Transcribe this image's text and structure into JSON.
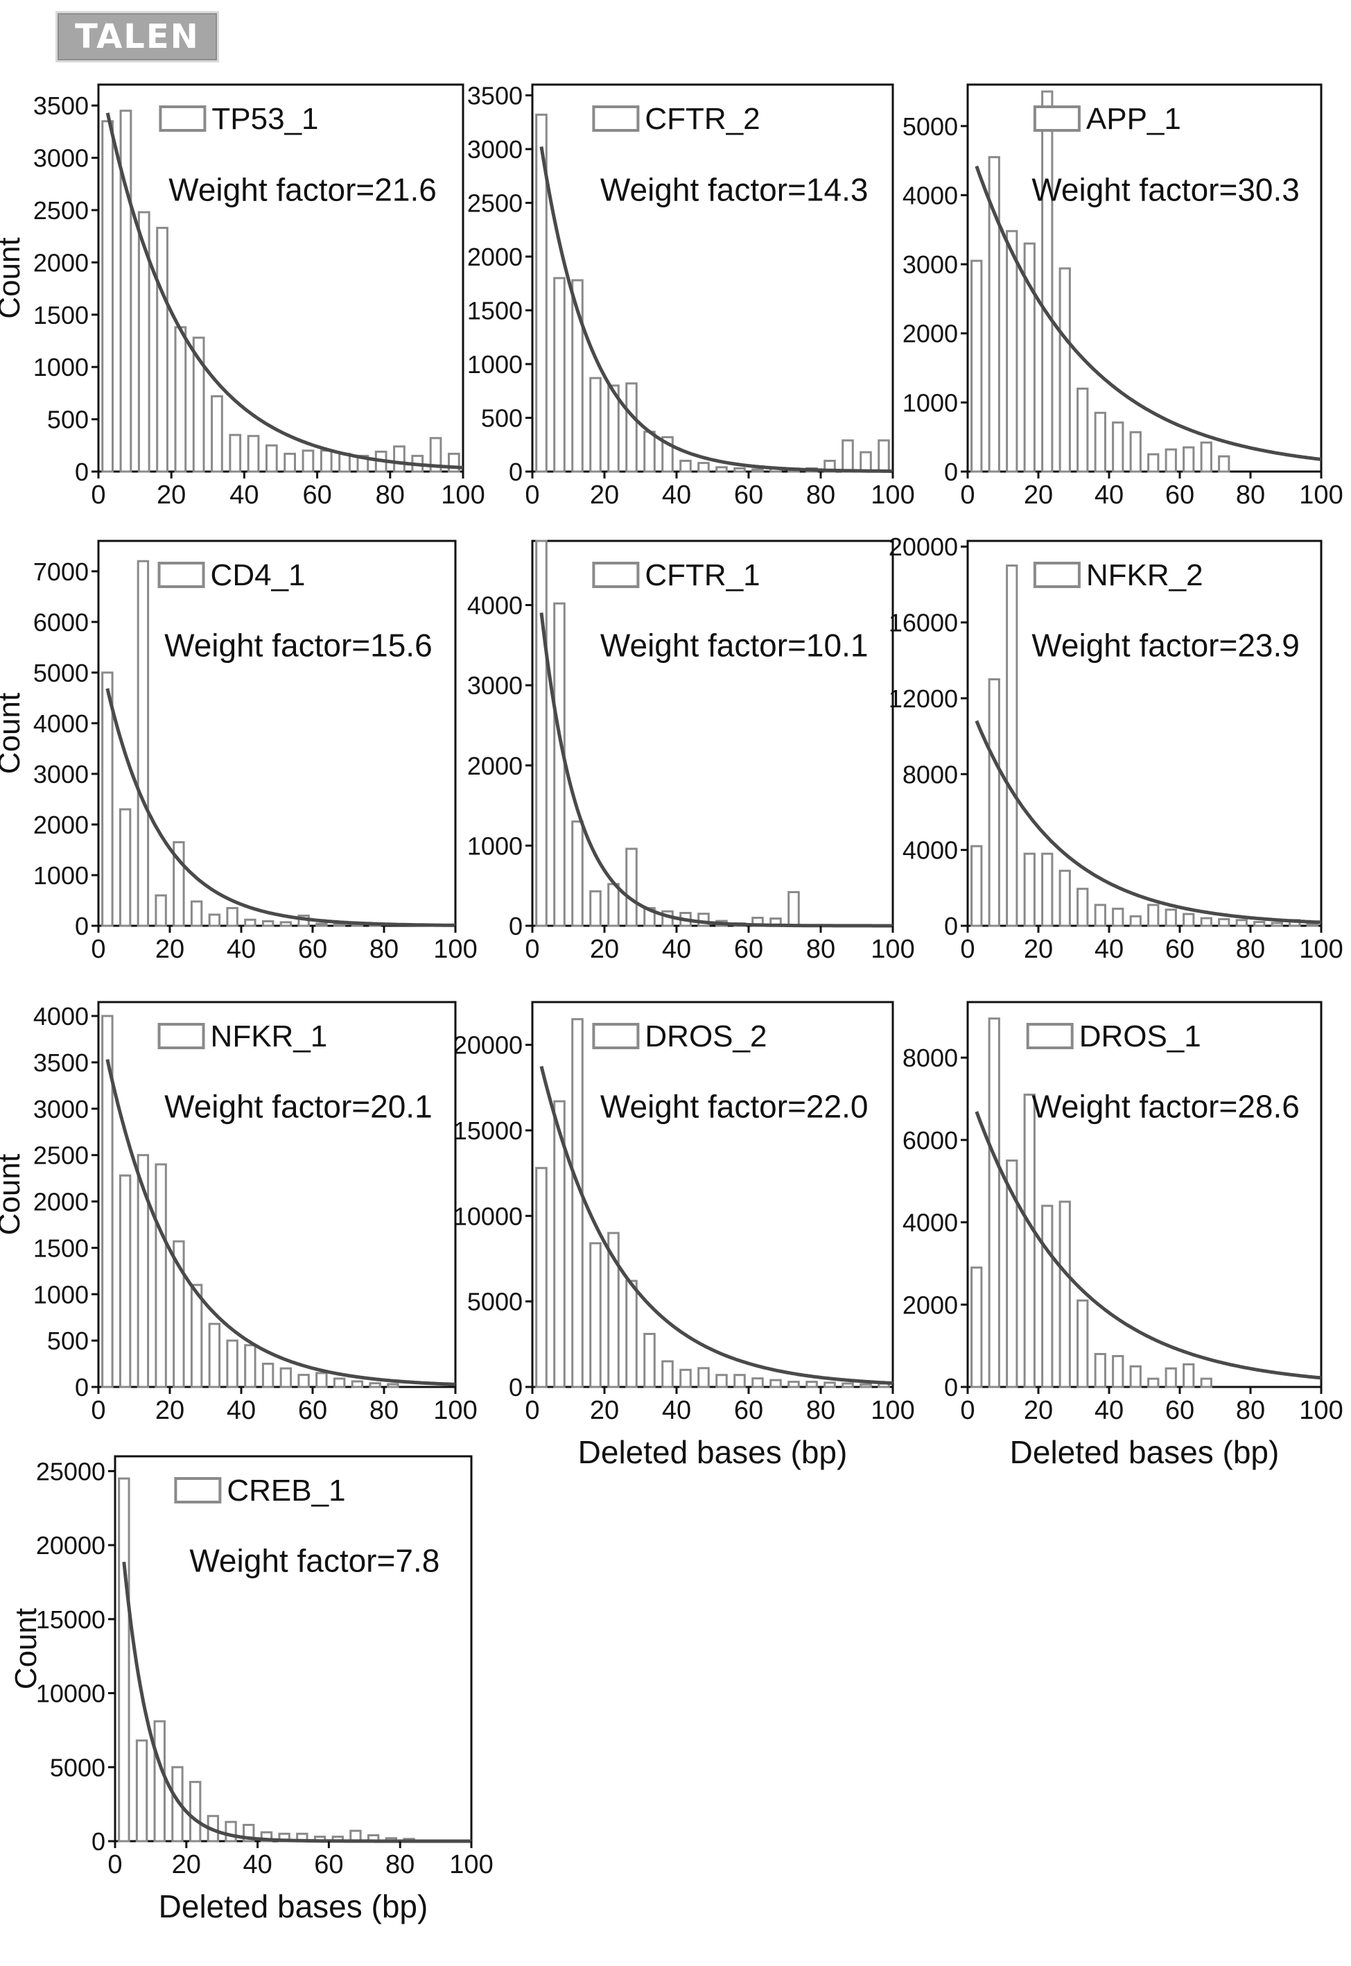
{
  "header": {
    "label": "TALEN"
  },
  "colors": {
    "bar_edge": "#8a8a8a",
    "bar_fill": "#ffffff",
    "curve": "#4a4a4a",
    "axis": "#111111"
  },
  "chart_data": [
    {
      "type": "bar",
      "title": "TP53_1",
      "annotation": "Weight factor=21.6",
      "ylabel": "Count",
      "xlabel": "",
      "xlim": [
        0,
        100
      ],
      "ylim": [
        0,
        3700
      ],
      "x_ticks": [
        0,
        20,
        40,
        60,
        80,
        100
      ],
      "y_ticks": [
        0,
        500,
        1000,
        1500,
        2000,
        2500,
        3000,
        3500
      ],
      "x": [
        2.5,
        7.5,
        12.5,
        17.5,
        22.5,
        27.5,
        32.5,
        37.5,
        42.5,
        47.5,
        52.5,
        57.5,
        62.5,
        67.5,
        72.5,
        77.5,
        82.5,
        87.5,
        92.5,
        97.5
      ],
      "values": [
        3350,
        3450,
        2480,
        2330,
        1380,
        1280,
        720,
        350,
        340,
        250,
        170,
        200,
        200,
        170,
        150,
        190,
        240,
        150,
        320,
        170
      ],
      "fit": {
        "model": "exponential",
        "A": 3850,
        "decay": 21.6
      }
    },
    {
      "type": "bar",
      "title": "CFTR_2",
      "annotation": "Weight factor=14.3",
      "ylabel": "",
      "xlabel": "",
      "xlim": [
        0,
        100
      ],
      "ylim": [
        0,
        3600
      ],
      "x_ticks": [
        0,
        20,
        40,
        60,
        80,
        100
      ],
      "y_ticks": [
        0,
        500,
        1000,
        1500,
        2000,
        2500,
        3000,
        3500
      ],
      "x": [
        2.5,
        7.5,
        12.5,
        17.5,
        22.5,
        27.5,
        32.5,
        37.5,
        42.5,
        47.5,
        52.5,
        57.5,
        62.5,
        67.5,
        72.5,
        77.5,
        82.5,
        87.5,
        92.5,
        97.5
      ],
      "values": [
        3320,
        1800,
        1780,
        870,
        800,
        820,
        370,
        320,
        100,
        80,
        40,
        30,
        20,
        30,
        20,
        30,
        100,
        290,
        180,
        290
      ],
      "fit": {
        "model": "exponential",
        "A": 3600,
        "decay": 14.3
      }
    },
    {
      "type": "bar",
      "title": "APP_1",
      "annotation": "Weight factor=30.3",
      "ylabel": "",
      "xlabel": "",
      "xlim": [
        0,
        100
      ],
      "ylim": [
        0,
        5600
      ],
      "x_ticks": [
        0,
        20,
        40,
        60,
        80,
        100
      ],
      "y_ticks": [
        0,
        1000,
        2000,
        3000,
        4000,
        5000
      ],
      "x": [
        2.5,
        7.5,
        12.5,
        17.5,
        22.5,
        27.5,
        32.5,
        37.5,
        42.5,
        47.5,
        52.5,
        57.5,
        62.5,
        67.5,
        72.5
      ],
      "values": [
        3050,
        4550,
        3480,
        3300,
        5500,
        2940,
        1200,
        850,
        710,
        570,
        250,
        320,
        350,
        420,
        220
      ],
      "fit": {
        "model": "exponential",
        "A": 4800,
        "decay": 30.3
      }
    },
    {
      "type": "bar",
      "title": "CD4_1",
      "annotation": "Weight factor=15.6",
      "ylabel": "Count",
      "xlabel": "",
      "xlim": [
        0,
        100
      ],
      "ylim": [
        0,
        7600
      ],
      "x_ticks": [
        0,
        20,
        40,
        60,
        80,
        100
      ],
      "y_ticks": [
        0,
        1000,
        2000,
        3000,
        4000,
        5000,
        6000,
        7000
      ],
      "x": [
        2.5,
        7.5,
        12.5,
        17.5,
        22.5,
        27.5,
        32.5,
        37.5,
        42.5,
        47.5,
        52.5,
        57.5,
        62.5,
        67.5,
        72.5,
        77.5
      ],
      "values": [
        5000,
        2300,
        7200,
        600,
        1650,
        480,
        220,
        350,
        120,
        90,
        70,
        200,
        40,
        30,
        20,
        20
      ],
      "fit": {
        "model": "exponential",
        "A": 5500,
        "decay": 15.6
      }
    },
    {
      "type": "bar",
      "title": "CFTR_1",
      "annotation": "Weight factor=10.1",
      "ylabel": "",
      "xlabel": "",
      "xlim": [
        0,
        100
      ],
      "ylim": [
        0,
        4800
      ],
      "x_ticks": [
        0,
        20,
        40,
        60,
        80,
        100
      ],
      "y_ticks": [
        0,
        1000,
        2000,
        3000,
        4000
      ],
      "x": [
        2.5,
        7.5,
        12.5,
        17.5,
        22.5,
        27.5,
        32.5,
        37.5,
        42.5,
        47.5,
        52.5,
        57.5,
        62.5,
        67.5,
        72.5
      ],
      "values": [
        4800,
        4020,
        1300,
        430,
        520,
        960,
        220,
        180,
        160,
        150,
        60,
        30,
        100,
        90,
        420
      ],
      "fit": {
        "model": "exponential",
        "A": 5000,
        "decay": 10.1
      }
    },
    {
      "type": "bar",
      "title": "NFKR_2",
      "annotation": "Weight factor=23.9",
      "ylabel": "",
      "xlabel": "",
      "xlim": [
        0,
        100
      ],
      "ylim": [
        0,
        20300
      ],
      "x_ticks": [
        0,
        20,
        40,
        60,
        80,
        100
      ],
      "y_ticks": [
        0,
        4000,
        8000,
        12000,
        16000,
        20000
      ],
      "x": [
        2.5,
        7.5,
        12.5,
        17.5,
        22.5,
        27.5,
        32.5,
        37.5,
        42.5,
        47.5,
        52.5,
        57.5,
        62.5,
        67.5,
        72.5,
        77.5,
        82.5,
        87.5,
        92.5,
        97.5
      ],
      "values": [
        4200,
        13000,
        19000,
        3800,
        3800,
        2900,
        1950,
        1100,
        900,
        500,
        1100,
        850,
        620,
        400,
        350,
        300,
        200,
        150,
        300,
        100
      ],
      "fit": {
        "model": "exponential",
        "A": 12000,
        "decay": 23.9
      }
    },
    {
      "type": "bar",
      "title": "NFKR_1",
      "annotation": "Weight factor=20.1",
      "ylabel": "Count",
      "xlabel": "",
      "xlim": [
        0,
        100
      ],
      "ylim": [
        0,
        4150
      ],
      "x_ticks": [
        0,
        20,
        40,
        60,
        80,
        100
      ],
      "y_ticks": [
        0,
        500,
        1000,
        1500,
        2000,
        2500,
        3000,
        3500,
        4000
      ],
      "x": [
        2.5,
        7.5,
        12.5,
        17.5,
        22.5,
        27.5,
        32.5,
        37.5,
        42.5,
        47.5,
        52.5,
        57.5,
        62.5,
        67.5,
        72.5,
        77.5,
        82.5
      ],
      "values": [
        4000,
        2280,
        2500,
        2400,
        1570,
        1100,
        680,
        500,
        450,
        250,
        200,
        130,
        150,
        90,
        60,
        40,
        30
      ],
      "fit": {
        "model": "exponential",
        "A": 4000,
        "decay": 20.1
      }
    },
    {
      "type": "bar",
      "title": "DROS_2",
      "annotation": "Weight factor=22.0",
      "ylabel": "",
      "xlabel": "Deleted bases (bp)",
      "xlim": [
        0,
        100
      ],
      "ylim": [
        0,
        22500
      ],
      "x_ticks": [
        0,
        20,
        40,
        60,
        80,
        100
      ],
      "y_ticks": [
        0,
        5000,
        10000,
        15000,
        20000
      ],
      "x": [
        2.5,
        7.5,
        12.5,
        17.5,
        22.5,
        27.5,
        32.5,
        37.5,
        42.5,
        47.5,
        52.5,
        57.5,
        62.5,
        67.5,
        72.5,
        77.5,
        82.5,
        87.5,
        92.5,
        97.5
      ],
      "values": [
        12800,
        16700,
        21500,
        8400,
        9000,
        6200,
        3100,
        1500,
        1000,
        1100,
        700,
        700,
        500,
        400,
        300,
        300,
        250,
        200,
        150,
        200
      ],
      "fit": {
        "model": "exponential",
        "A": 21000,
        "decay": 22.0
      }
    },
    {
      "type": "bar",
      "title": "DROS_1",
      "annotation": "Weight factor=28.6",
      "ylabel": "",
      "xlabel": "Deleted bases (bp)",
      "xlim": [
        0,
        100
      ],
      "ylim": [
        0,
        9350
      ],
      "x_ticks": [
        0,
        20,
        40,
        60,
        80,
        100
      ],
      "y_ticks": [
        0,
        2000,
        4000,
        6000,
        8000
      ],
      "x": [
        2.5,
        7.5,
        12.5,
        17.5,
        22.5,
        27.5,
        32.5,
        37.5,
        42.5,
        47.5,
        52.5,
        57.5,
        62.5,
        67.5
      ],
      "values": [
        2900,
        8950,
        5500,
        7100,
        4400,
        4500,
        2100,
        800,
        750,
        500,
        200,
        450,
        550,
        200
      ],
      "fit": {
        "model": "exponential",
        "A": 7300,
        "decay": 28.6
      }
    },
    {
      "type": "bar",
      "title": "CREB_1",
      "annotation": "Weight factor=7.8",
      "ylabel": "Count",
      "xlabel": "Deleted bases (bp)",
      "xlim": [
        0,
        100
      ],
      "ylim": [
        0,
        26000
      ],
      "x_ticks": [
        0,
        20,
        40,
        60,
        80,
        100
      ],
      "y_ticks": [
        0,
        5000,
        10000,
        15000,
        20000,
        25000
      ],
      "x": [
        2.5,
        7.5,
        12.5,
        17.5,
        22.5,
        27.5,
        32.5,
        37.5,
        42.5,
        47.5,
        52.5,
        57.5,
        62.5,
        67.5,
        72.5,
        77.5,
        82.5
      ],
      "values": [
        24500,
        6800,
        8100,
        5000,
        4000,
        1700,
        1300,
        1100,
        600,
        500,
        500,
        300,
        300,
        700,
        400,
        200,
        150
      ],
      "fit": {
        "model": "exponential",
        "A": 26000,
        "decay": 7.8
      }
    }
  ]
}
